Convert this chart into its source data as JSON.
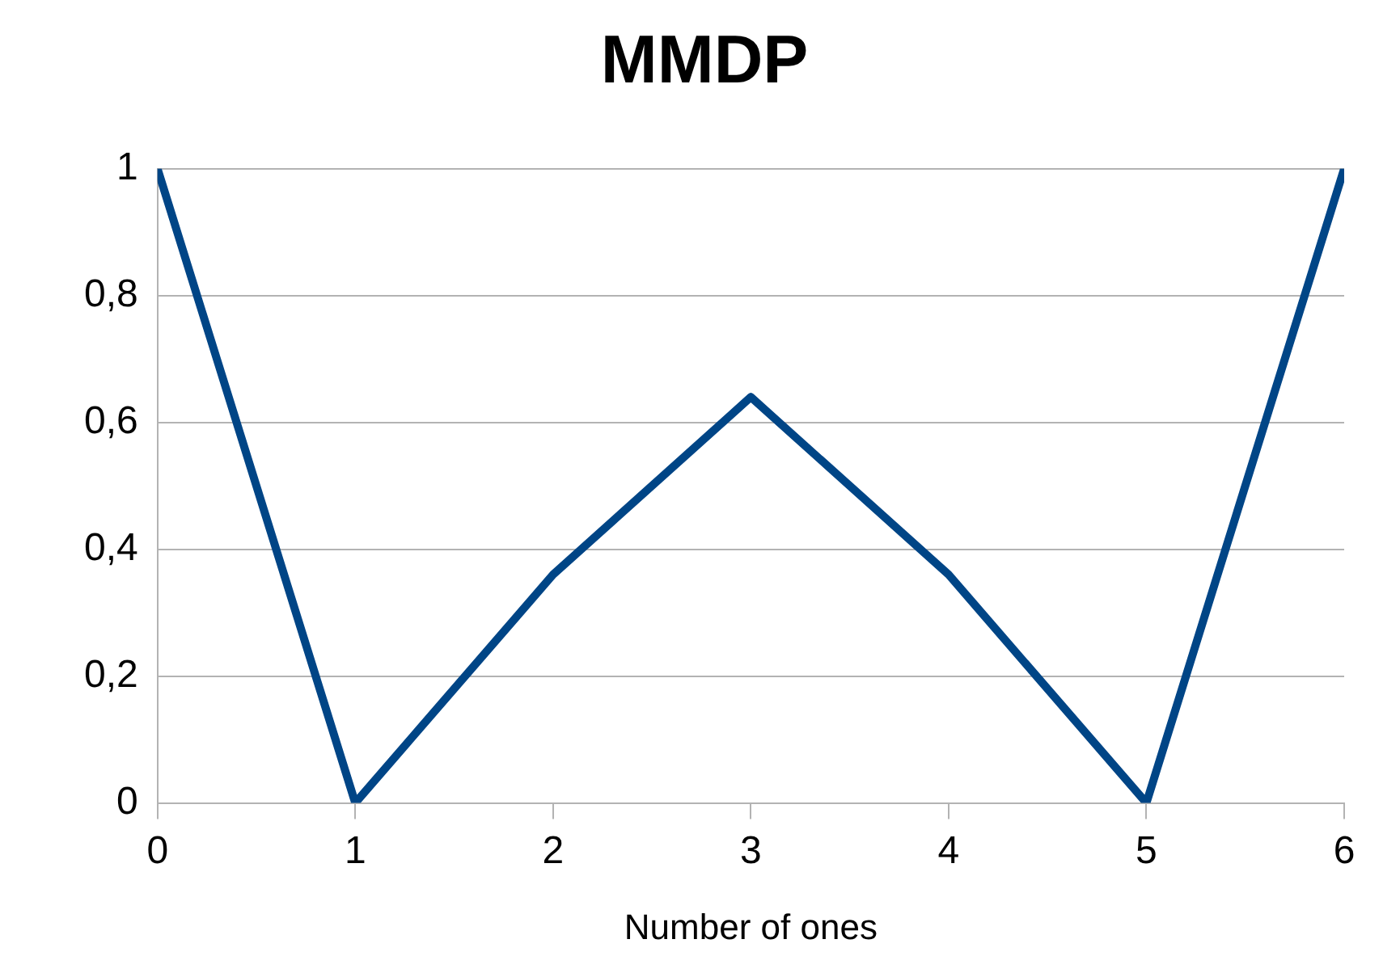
{
  "chart_data": {
    "type": "line",
    "title": "MMDP",
    "xlabel": "Number of ones",
    "x": [
      0,
      1,
      2,
      3,
      4,
      5,
      6
    ],
    "series": [
      {
        "color": "#004586",
        "values": [
          1,
          0,
          0.36,
          0.64,
          0.36,
          0,
          1
        ]
      }
    ],
    "xlim": [
      0,
      6
    ],
    "xticks": [
      0,
      1,
      2,
      3,
      4,
      5,
      6
    ],
    "ylim": [
      0,
      1
    ],
    "yticks": [
      0,
      {
        "value": 0.2,
        "label": "0,2"
      },
      {
        "value": 0.4,
        "label": "0,4"
      },
      {
        "value": 0.6,
        "label": "0,6"
      },
      {
        "value": 0.8,
        "label": "0,8"
      },
      1
    ],
    "grid": "y",
    "legend": false,
    "marker": "none",
    "line_style": "solid"
  }
}
